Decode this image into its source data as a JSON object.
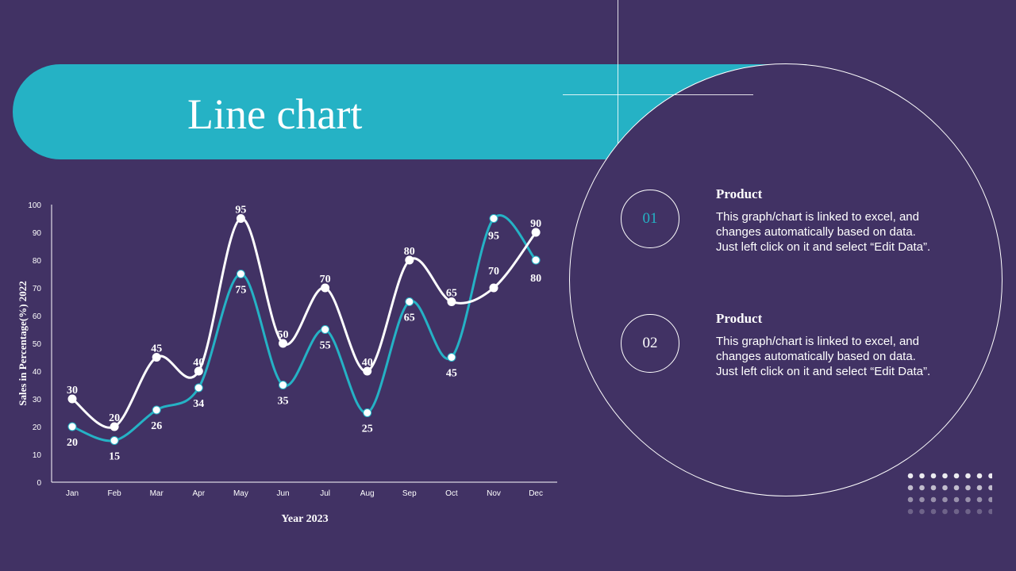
{
  "slide": {
    "title": "Line chart"
  },
  "colors": {
    "background": "#413264",
    "accent": "#25b2c5",
    "white": "#ffffff"
  },
  "items": [
    {
      "number": "01",
      "title": "Product",
      "lines": [
        "This graph/chart is linked to excel, and",
        "changes automatically based on data.",
        "Just left click on it and select “Edit Data”."
      ],
      "number_color": "#25b2c5"
    },
    {
      "number": "02",
      "title": "Product",
      "lines": [
        "This graph/chart is linked to excel, and",
        "changes automatically based on data.",
        "Just left click on it and select “Edit Data”."
      ],
      "number_color": "#ffffff"
    }
  ],
  "chart_data": {
    "type": "line",
    "categories": [
      "Jan",
      "Feb",
      "Mar",
      "Apr",
      "May",
      "Jun",
      "Jul",
      "Aug",
      "Sep",
      "Oct",
      "Nov",
      "Dec"
    ],
    "series": [
      {
        "color": "#ffffff",
        "values": [
          30,
          20,
          45,
          40,
          95,
          50,
          70,
          40,
          80,
          65,
          70,
          90
        ]
      },
      {
        "color": "#25b2c5",
        "values": [
          20,
          15,
          26,
          34,
          75,
          35,
          55,
          25,
          65,
          45,
          95,
          80
        ]
      }
    ],
    "xlabel": "Year 2023",
    "ylabel": "Sales in Percentage(%) 2022",
    "ylim": [
      0,
      100
    ],
    "yticks": [
      0,
      10,
      20,
      30,
      40,
      50,
      60,
      70,
      80,
      90,
      100
    ],
    "grid": false,
    "smooth": true,
    "legend": "none"
  }
}
